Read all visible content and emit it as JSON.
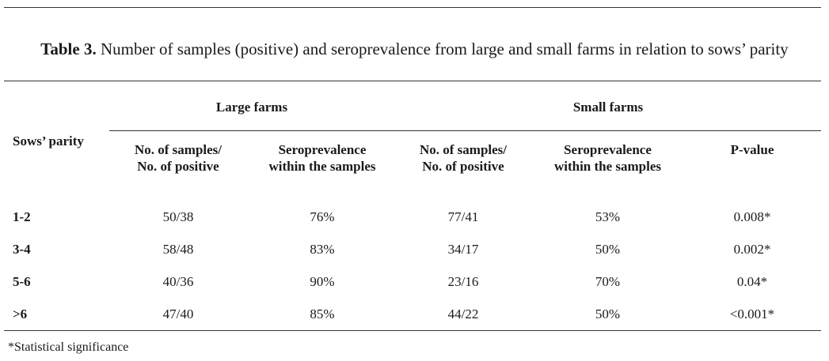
{
  "caption": {
    "label": "Table 3.",
    "text": " Number of samples (positive) and seroprevalence from large and small farms in relation to sows’ parity"
  },
  "headers": {
    "group_large": "Large farms",
    "group_small": "Small farms",
    "sows_parity": "Sows’ parity",
    "samples_line1": "No. of samples/",
    "samples_line2": "No. of positive",
    "sero_line1": "Seroprevalence",
    "sero_line2": "within the samples",
    "pvalue": "P-value"
  },
  "rows": [
    {
      "parity": "1-2",
      "large_samples": "50/38",
      "large_sero": "76%",
      "small_samples": "77/41",
      "small_sero": "53%",
      "p": "0.008*"
    },
    {
      "parity": "3-4",
      "large_samples": "58/48",
      "large_sero": "83%",
      "small_samples": "34/17",
      "small_sero": "50%",
      "p": "0.002*"
    },
    {
      "parity": "5-6",
      "large_samples": "40/36",
      "large_sero": "90%",
      "small_samples": "23/16",
      "small_sero": "70%",
      "p": "0.04*"
    },
    {
      "parity": ">6",
      "large_samples": "47/40",
      "large_sero": "85%",
      "small_samples": "44/22",
      "small_sero": "50%",
      "p": "<0.001*"
    }
  ],
  "footnote": "*Statistical significance"
}
